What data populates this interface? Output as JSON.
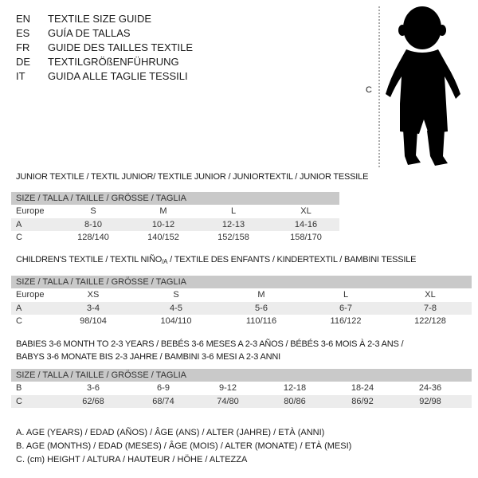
{
  "header": {
    "languages": [
      {
        "code": "EN",
        "title": "TEXTILE SIZE GUIDE"
      },
      {
        "code": "ES",
        "title": "GUÍA DE TALLAS"
      },
      {
        "code": "FR",
        "title": "GUIDE DES TAILLES TEXTILE"
      },
      {
        "code": "DE",
        "title": "TEXTILGRÖßENFÜHRUNG"
      },
      {
        "code": "IT",
        "title": "GUIDA ALLE TAGLIE TESSILI"
      }
    ]
  },
  "figure": {
    "measure_label": "C",
    "icon": "baby-silhouette-icon"
  },
  "tables": [
    {
      "title": "JUNIOR TEXTILE / TEXTIL JUNIOR/ TEXTILE JUNIOR / JUNIORTEXTIL / JUNIOR TESSILE",
      "header": "SIZE / TALLA / TAILLE / GRÖSSE / TAGLIA",
      "rows": [
        {
          "label": "Europe",
          "cells": [
            "S",
            "M",
            "L",
            "XL"
          ]
        },
        {
          "label": "A",
          "cells": [
            "8-10",
            "10-12",
            "12-13",
            "14-16"
          ]
        },
        {
          "label": "C",
          "cells": [
            "128/140",
            "140/152",
            "152/158",
            "158/170"
          ]
        }
      ]
    },
    {
      "title": "CHILDREN'S TEXTILE / TEXTIL NIÑO",
      "title_sub": "/A",
      "title_rest": " / TEXTILE DES ENFANTS / KINDERTEXTIL / BAMBINI TESSILE",
      "header": "SIZE / TALLA / TAILLE / GRÖSSE / TAGLIA",
      "rows": [
        {
          "label": "Europe",
          "cells": [
            "XS",
            "S",
            "M",
            "L",
            "XL"
          ]
        },
        {
          "label": "A",
          "cells": [
            "3-4",
            "4-5",
            "5-6",
            "6-7",
            "7-8"
          ]
        },
        {
          "label": "C",
          "cells": [
            "98/104",
            "104/110",
            "110/116",
            "116/122",
            "122/128"
          ]
        }
      ]
    },
    {
      "title": "BABIES 3-6 MONTH TO 2-3 YEARS / BEBÉS 3-6 MESES A 2-3 AÑOS / BÉBÉS 3-6 MOIS À 2-3 ANS /",
      "title2": "BABYS 3-6 MONATE BIS 2-3 JAHRE / BAMBINI 3-6 MESI A 2-3 ANNI",
      "header": "SIZE / TALLA / TAILLE / GRÖSSE / TAGLIA",
      "rows": [
        {
          "label": "B",
          "cells": [
            "3-6",
            "6-9",
            "9-12",
            "12-18",
            "18-24",
            "24-36"
          ]
        },
        {
          "label": "C",
          "cells": [
            "62/68",
            "68/74",
            "74/80",
            "80/86",
            "86/92",
            "92/98"
          ]
        }
      ]
    }
  ],
  "legend": [
    "A. AGE (YEARS) / EDAD (AÑOS) / ÂGE (ANS) / ALTER (JAHRE) / ETÀ (ANNI)",
    "B. AGE (MONTHS) / EDAD (MESES) / ÂGE (MOIS) / ALTER (MONATE) / ETÀ (MESI)",
    "C. (cm) HEIGHT / ALTURA / HAUTEUR / HÖHE / ALTEZZA"
  ]
}
